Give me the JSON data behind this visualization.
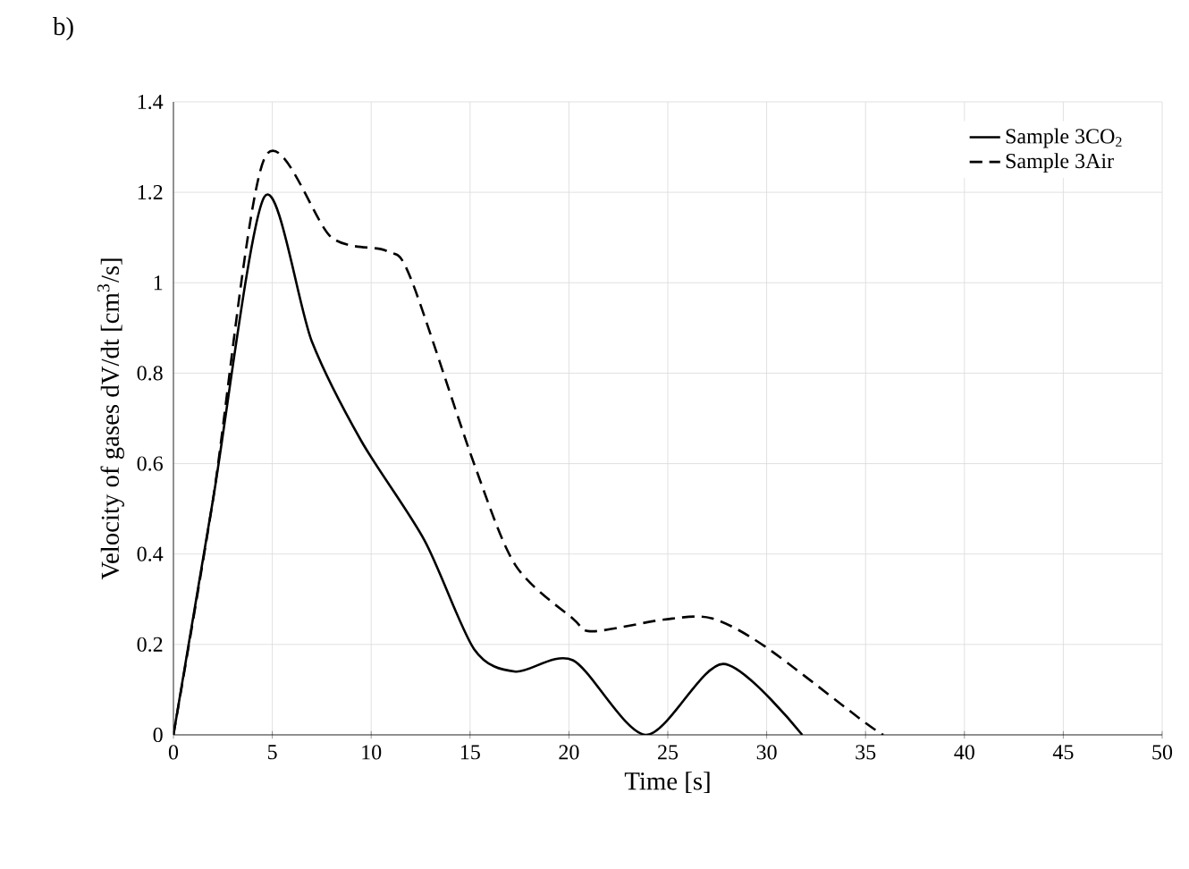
{
  "chart_data": {
    "type": "line",
    "title": "b)",
    "xlabel": "Time [s]",
    "ylabel": "Velocity of gases dV/dt [cm$^{3}$/s]",
    "xlim": [
      0,
      50
    ],
    "xticks": [
      0,
      5,
      10,
      15,
      20,
      25,
      30,
      35,
      40,
      45,
      50
    ],
    "ylim": [
      0,
      1.4
    ],
    "yticks": [
      0,
      0.2,
      0.4,
      0.6,
      0.8,
      1,
      1.2,
      1.4
    ],
    "grid": true,
    "legend": "top right",
    "series": [
      {
        "name": "Sample 3CO$_{2}$",
        "color": "#000000",
        "line_style": "solid",
        "x": [
          0,
          2,
          4.6,
          7,
          9.5,
          12.7,
          15.2,
          17.3,
          20.2,
          23.9,
          27.8,
          31.8
        ],
        "values": [
          0,
          0.52,
          1.19,
          0.87,
          0.65,
          0.43,
          0.19,
          0.14,
          0.165,
          0,
          0.157,
          0
        ]
      },
      {
        "name": "Sample 3Air",
        "color": "#000000",
        "line_style": "dashed",
        "x": [
          0,
          2,
          4.6,
          8,
          10.8,
          12,
          15.2,
          17.3,
          20.2,
          21.2,
          24.8,
          27.2,
          29.9,
          34.8,
          35.9
        ],
        "values": [
          0,
          0.52,
          1.275,
          1.1,
          1.07,
          1.01,
          0.6,
          0.375,
          0.257,
          0.229,
          0.255,
          0.258,
          0.196,
          0.033,
          0
        ]
      }
    ]
  }
}
